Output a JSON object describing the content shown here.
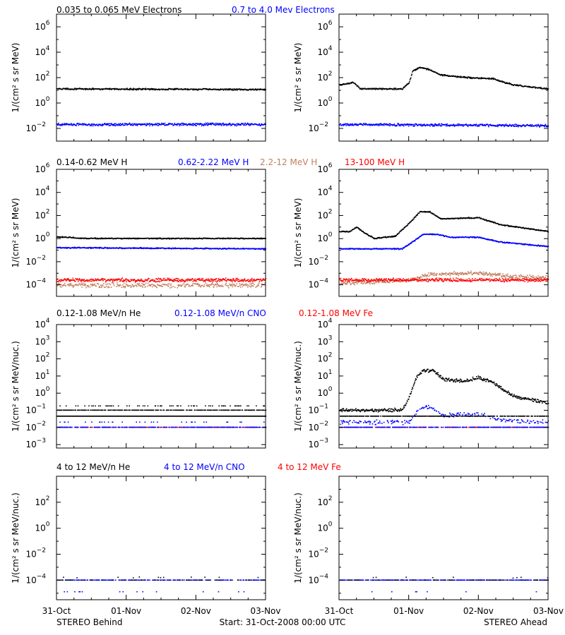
{
  "figure": {
    "footer_left": "STEREO Behind",
    "footer_center": "Start: 31-Oct-2008 00:00 UTC",
    "footer_right": "STEREO Ahead",
    "x_ticks": [
      "31-Oct",
      "01-Nov",
      "02-Nov",
      "03-Nov"
    ]
  },
  "colors": {
    "black": "#000000",
    "blue": "#0000ff",
    "tan": "#c08060",
    "red": "#ff0000"
  },
  "chart_data": [
    {
      "type": "scatter",
      "row": 0,
      "ylabel": "1/(cm² s sr MeV)",
      "yscale": "log",
      "ylim_exp": [
        -3,
        7
      ],
      "ytick_exps": [
        -2,
        0,
        2,
        4,
        6
      ],
      "xlim_days": [
        0,
        3
      ],
      "legend": [
        {
          "label": "0.035 to 0.065 MeV Electrons",
          "color": "#000000"
        },
        {
          "label": "0.7 to 4.0 Mev Electrons",
          "color": "#0000ff"
        }
      ],
      "behind": [
        {
          "color": "#000000",
          "profile": [
            [
              0,
              1.1
            ],
            [
              3,
              1.05
            ]
          ],
          "scatter": 0.07,
          "density": 1.0
        },
        {
          "color": "#0000ff",
          "profile": [
            [
              0,
              -1.7
            ],
            [
              3,
              -1.7
            ]
          ],
          "scatter": 0.12,
          "density": 1.0
        }
      ],
      "ahead": [
        {
          "color": "#000000",
          "profile": [
            [
              0,
              1.4
            ],
            [
              0.2,
              1.6
            ],
            [
              0.3,
              1.1
            ],
            [
              0.9,
              1.1
            ],
            [
              1.0,
              1.6
            ],
            [
              1.05,
              2.5
            ],
            [
              1.15,
              2.8
            ],
            [
              1.3,
              2.6
            ],
            [
              1.45,
              2.2
            ],
            [
              1.8,
              2.0
            ],
            [
              2.2,
              1.9
            ],
            [
              2.5,
              1.4
            ],
            [
              3,
              1.1
            ]
          ],
          "scatter": 0.07,
          "density": 1.0
        },
        {
          "color": "#0000ff",
          "profile": [
            [
              0,
              -1.7
            ],
            [
              3,
              -1.8
            ]
          ],
          "scatter": 0.12,
          "density": 1.0
        }
      ]
    },
    {
      "type": "scatter",
      "row": 1,
      "ylabel": "1/(cm² s sr MeV)",
      "yscale": "log",
      "ylim_exp": [
        -5,
        6
      ],
      "ytick_exps": [
        -4,
        -2,
        0,
        2,
        4,
        6
      ],
      "xlim_days": [
        0,
        3
      ],
      "legend": [
        {
          "label": "0.14-0.62 MeV H",
          "color": "#000000"
        },
        {
          "label": "0.62-2.22 MeV H",
          "color": "#0000ff"
        },
        {
          "label": "2.2-12 MeV H",
          "color": "#c08060"
        },
        {
          "label": "13-100 MeV H",
          "color": "#ff0000"
        }
      ],
      "behind": [
        {
          "color": "#c08060",
          "profile": [
            [
              0,
              -4.05
            ],
            [
              3,
              -4.05
            ]
          ],
          "scatter": 0.25,
          "density": 0.8
        },
        {
          "color": "#ff0000",
          "profile": [
            [
              0,
              -3.6
            ],
            [
              3,
              -3.6
            ]
          ],
          "scatter": 0.18,
          "density": 1.0
        },
        {
          "color": "#0000ff",
          "profile": [
            [
              0,
              -0.8
            ],
            [
              3,
              -0.9
            ]
          ],
          "scatter": 0.06,
          "density": 1.0
        },
        {
          "color": "#000000",
          "profile": [
            [
              0,
              0.15
            ],
            [
              0.4,
              0.0
            ],
            [
              3,
              0.0
            ]
          ],
          "scatter": 0.05,
          "density": 1.0
        }
      ],
      "ahead": [
        {
          "color": "#c08060",
          "profile": [
            [
              0,
              -3.9
            ],
            [
              1.0,
              -3.6
            ],
            [
              1.3,
              -3.1
            ],
            [
              2.0,
              -3.0
            ],
            [
              2.5,
              -3.3
            ],
            [
              3,
              -3.4
            ]
          ],
          "scatter": 0.2,
          "density": 0.9
        },
        {
          "color": "#ff0000",
          "profile": [
            [
              0,
              -3.6
            ],
            [
              3,
              -3.6
            ]
          ],
          "scatter": 0.18,
          "density": 1.0
        },
        {
          "color": "#0000ff",
          "profile": [
            [
              0,
              -0.9
            ],
            [
              0.9,
              -0.9
            ],
            [
              1.05,
              -0.3
            ],
            [
              1.2,
              0.35
            ],
            [
              1.4,
              0.35
            ],
            [
              1.6,
              0.1
            ],
            [
              2.0,
              0.1
            ],
            [
              2.3,
              -0.3
            ],
            [
              3,
              -0.7
            ]
          ],
          "scatter": 0.06,
          "density": 1.0
        },
        {
          "color": "#000000",
          "profile": [
            [
              0,
              0.6
            ],
            [
              0.15,
              0.6
            ],
            [
              0.25,
              1.0
            ],
            [
              0.35,
              0.5
            ],
            [
              0.5,
              0.0
            ],
            [
              0.8,
              0.2
            ],
            [
              1.0,
              1.3
            ],
            [
              1.15,
              2.3
            ],
            [
              1.3,
              2.3
            ],
            [
              1.45,
              1.7
            ],
            [
              2.0,
              1.8
            ],
            [
              2.3,
              1.2
            ],
            [
              3,
              0.6
            ]
          ],
          "scatter": 0.06,
          "density": 1.0
        }
      ]
    },
    {
      "type": "scatter",
      "row": 2,
      "ylabel": "1/(cm² s sr MeV/nuc.)",
      "yscale": "log",
      "ylim_exp": [
        -3.2,
        4
      ],
      "ytick_exps": [
        -3,
        -2,
        -1,
        0,
        1,
        2,
        3,
        4
      ],
      "xlim_days": [
        0,
        3
      ],
      "legend": [
        {
          "label": "0.12-1.08 MeV/n He",
          "color": "#000000"
        },
        {
          "label": "0.12-1.08 MeV/n CNO",
          "color": "#0000ff"
        },
        {
          "label": "0.12-1.08 MeV Fe",
          "color": "#ff0000"
        }
      ],
      "behind": [
        {
          "color": "#ff0000",
          "profile": [
            [
              0,
              -2
            ],
            [
              3,
              -2
            ]
          ],
          "scatter": 0.0,
          "density": 0.35
        },
        {
          "color": "#0000ff",
          "profile": [
            [
              0,
              -2
            ],
            [
              3,
              -2
            ]
          ],
          "scatter": 0.0,
          "density": 0.55
        },
        {
          "color": "#0000ff",
          "profile": [
            [
              0,
              -1.7
            ],
            [
              3,
              -1.7
            ]
          ],
          "scatter": 0.0,
          "density": 0.08
        },
        {
          "color": "#000000",
          "profile": [
            [
              0,
              -1.35
            ],
            [
              3,
              -1.35
            ]
          ],
          "scatter": 0.0,
          "density": 1.0
        },
        {
          "color": "#000000",
          "profile": [
            [
              0,
              -1.0
            ],
            [
              3,
              -1.0
            ]
          ],
          "scatter": 0.0,
          "density": 0.6
        },
        {
          "color": "#000000",
          "profile": [
            [
              0,
              -0.75
            ],
            [
              3,
              -0.75
            ]
          ],
          "scatter": 0.0,
          "density": 0.15
        }
      ],
      "ahead": [
        {
          "color": "#ff0000",
          "profile": [
            [
              0,
              -2
            ],
            [
              3,
              -2
            ]
          ],
          "scatter": 0.0,
          "density": 0.35
        },
        {
          "color": "#0000ff",
          "profile": [
            [
              0,
              -2
            ],
            [
              3,
              -2
            ]
          ],
          "scatter": 0.0,
          "density": 0.55
        },
        {
          "color": "#0000ff",
          "profile": [
            [
              0,
              -1.7
            ],
            [
              1.0,
              -1.7
            ],
            [
              1.15,
              -0.9
            ],
            [
              1.3,
              -0.8
            ],
            [
              1.5,
              -1.3
            ],
            [
              2.0,
              -1.2
            ],
            [
              2.3,
              -1.6
            ],
            [
              3,
              -1.7
            ]
          ],
          "scatter": 0.15,
          "density": 0.5
        },
        {
          "color": "#000000",
          "profile": [
            [
              0,
              -1.35
            ],
            [
              0.65,
              -1.35
            ],
            [
              3,
              -1.35
            ]
          ],
          "scatter": 0.0,
          "density": 0.7
        },
        {
          "color": "#000000",
          "profile": [
            [
              0,
              -1.0
            ],
            [
              0.9,
              -1.0
            ],
            [
              1.0,
              -0.3
            ],
            [
              1.1,
              0.9
            ],
            [
              1.2,
              1.3
            ],
            [
              1.35,
              1.3
            ],
            [
              1.5,
              0.8
            ],
            [
              1.8,
              0.7
            ],
            [
              2.0,
              0.9
            ],
            [
              2.2,
              0.6
            ],
            [
              2.5,
              -0.2
            ],
            [
              3,
              -0.6
            ]
          ],
          "scatter": 0.12,
          "density": 1.0
        }
      ]
    },
    {
      "type": "scatter",
      "row": 3,
      "ylabel": "1/(cm² s sr MeV/nuc.)",
      "yscale": "log",
      "ylim_exp": [
        -5.5,
        4
      ],
      "ytick_exps": [
        -4,
        -2,
        0,
        2
      ],
      "xlim_days": [
        0,
        3
      ],
      "legend": [
        {
          "label": "4 to 12 MeV/n He",
          "color": "#000000"
        },
        {
          "label": "4 to 12 MeV/n CNO",
          "color": "#0000ff"
        },
        {
          "label": "4 to 12 MeV Fe",
          "color": "#ff0000"
        }
      ],
      "behind": [
        {
          "color": "#0000ff",
          "profile": [
            [
              0,
              -4
            ],
            [
              3,
              -4
            ]
          ],
          "scatter": 0.0,
          "density": 0.5
        },
        {
          "color": "#000000",
          "profile": [
            [
              0,
              -4
            ],
            [
              3,
              -4
            ]
          ],
          "scatter": 0.0,
          "density": 0.15
        },
        {
          "color": "#000000",
          "profile": [
            [
              0,
              -3.8
            ],
            [
              3,
              -3.8
            ]
          ],
          "scatter": 0.05,
          "density": 0.03
        },
        {
          "color": "#0000ff",
          "profile": [
            [
              0,
              -4.9
            ],
            [
              3,
              -4.9
            ]
          ],
          "scatter": 0.0,
          "density": 0.04
        }
      ],
      "ahead": [
        {
          "color": "#0000ff",
          "profile": [
            [
              0,
              -4
            ],
            [
              3,
              -4
            ]
          ],
          "scatter": 0.0,
          "density": 0.5
        },
        {
          "color": "#000000",
          "profile": [
            [
              0,
              -4
            ],
            [
              3,
              -4
            ]
          ],
          "scatter": 0.0,
          "density": 0.15
        },
        {
          "color": "#000000",
          "profile": [
            [
              0,
              -3.8
            ],
            [
              3,
              -3.8
            ]
          ],
          "scatter": 0.05,
          "density": 0.03
        },
        {
          "color": "#0000ff",
          "profile": [
            [
              0,
              -4.9
            ],
            [
              3,
              -4.9
            ]
          ],
          "scatter": 0.0,
          "density": 0.03
        }
      ]
    }
  ]
}
